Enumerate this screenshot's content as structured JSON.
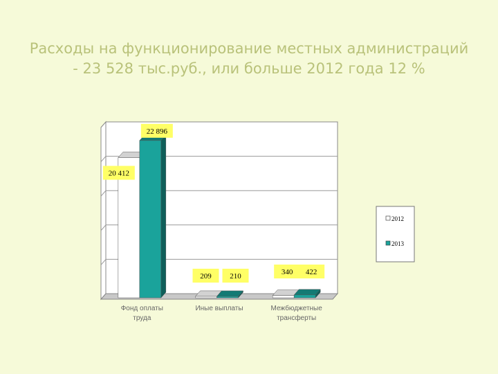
{
  "title": {
    "line1": "Расходы на функционирование местных администраций",
    "line2": "- 23 528 тыс.руб., или больше 2012 года 12 %"
  },
  "chart_data": {
    "type": "bar",
    "categories": [
      "Фонд оплаты труда",
      "Иные выплаты",
      "Межбюджетные трансферты"
    ],
    "category_lines": [
      [
        "Фонд оплаты",
        "труда"
      ],
      [
        "Иные выплаты"
      ],
      [
        "Межбюджетные",
        "трансферты"
      ]
    ],
    "series": [
      {
        "name": "2012",
        "values": [
          20412,
          209,
          340
        ],
        "labels": [
          "20 412",
          "209",
          "340"
        ],
        "color": "#ffffff"
      },
      {
        "name": "2013",
        "values": [
          22896,
          210,
          422
        ],
        "labels": [
          "22 896",
          "210",
          "422"
        ],
        "color": "#1aa39b"
      }
    ],
    "ylim": [
      0,
      25000
    ],
    "grid": true,
    "legend": "right",
    "label_box_color": "#ffff66",
    "plot_wall_color": "#ffffff"
  }
}
